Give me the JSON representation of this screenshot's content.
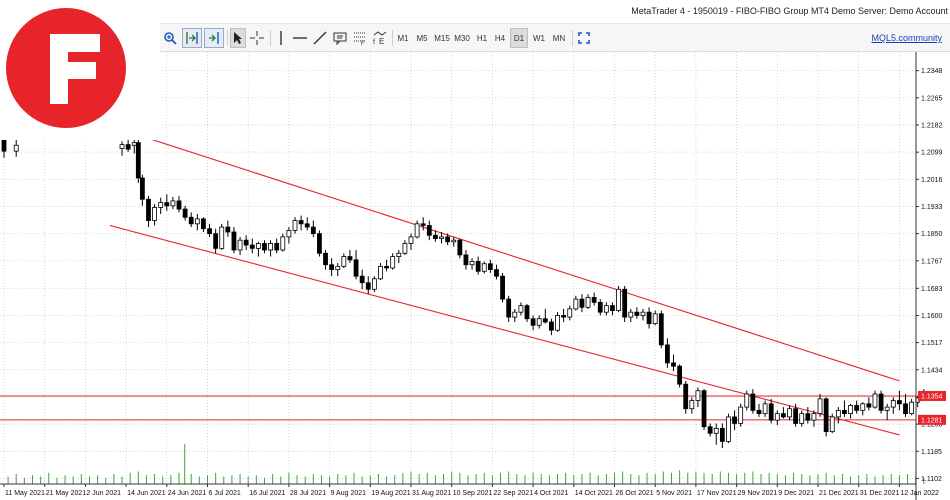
{
  "window": {
    "title": "MetaTrader 4 - 1950019 - FIBO-FIBO Group MT4 Demo Server: Demo Account"
  },
  "toolbar": {
    "timeframes": [
      "M1",
      "M5",
      "M15",
      "M30",
      "H1",
      "H4",
      "D1",
      "W1",
      "MN"
    ],
    "active_timeframe": "D1",
    "community_link": "MQL5.community",
    "icons": [
      "zoom-in-icon",
      "autoscroll-icon",
      "chart-shift-icon",
      "cursor-icon",
      "crosshair-icon",
      "vertical-line-icon",
      "horizontal-line-icon",
      "trendline-icon",
      "text-label-icon",
      "fibonacci-icon",
      "indicators-icon",
      "fullscreen-icon"
    ]
  },
  "logo": {
    "name": "fibo-group-logo",
    "color": "#e8242b"
  },
  "chart_data": {
    "type": "candlestick",
    "symbol_timeframe": "D1",
    "y_axis": {
      "ticks": [
        "1.2348",
        "1.2265",
        "1.2182",
        "1.2099",
        "1.2016",
        "1.1933",
        "1.1850",
        "1.1767",
        "1.1683",
        "1.1600",
        "1.1517",
        "1.1434",
        "1.1351",
        "1.1268",
        "1.1185",
        "1.1102"
      ],
      "range": [
        1.1085,
        1.2405
      ]
    },
    "x_axis": {
      "labels": [
        "11 May 2021",
        "21 May 2021",
        "2 Jun 2021",
        "14 Jun 2021",
        "24 Jun 2021",
        "6 Jul 2021",
        "16 Jul 2021",
        "28 Jul 2021",
        "9 Aug 2021",
        "19 Aug 2021",
        "31 Aug 2021",
        "10 Sep 2021",
        "22 Sep 2021",
        "4 Oct 2021",
        "14 Oct 2021",
        "26 Oct 2021",
        "5 Nov 2021",
        "17 Nov 2021",
        "29 Nov 2021",
        "9 Dec 2021",
        "21 Dec 2021",
        "31 Dec 2021",
        "12 Jan 2022"
      ]
    },
    "price_tags": [
      {
        "label": "1.1354",
        "value": 1.1354,
        "color": "#e8242b"
      },
      {
        "label": "1.1281",
        "value": 1.1281,
        "color": "#e8242b"
      }
    ],
    "horizontal_lines": [
      1.1354,
      1.1281
    ],
    "channel": {
      "upper": [
        [
          3.2,
          1.2155
        ],
        [
          22.0,
          1.14
        ]
      ],
      "lower": [
        [
          2.6,
          1.1875
        ],
        [
          22.0,
          1.1235
        ]
      ],
      "color": "#e8242b"
    },
    "candles": [
      [
        0.0,
        1.214,
        1.2175,
        1.2082,
        1.2102
      ],
      [
        0.3,
        1.2102,
        1.2138,
        1.2085,
        1.212
      ],
      [
        2.9,
        1.211,
        1.2132,
        1.2088,
        1.2122
      ],
      [
        3.05,
        1.2122,
        1.214,
        1.21,
        1.2108
      ],
      [
        3.2,
        1.212,
        1.215,
        1.2095,
        1.2128
      ],
      [
        3.3,
        1.2128,
        1.2145,
        1.2005,
        1.202
      ],
      [
        3.4,
        1.202,
        1.203,
        1.1935,
        1.1955
      ],
      [
        3.55,
        1.1955,
        1.1965,
        1.187,
        1.189
      ],
      [
        3.7,
        1.189,
        1.194,
        1.1875,
        1.193
      ],
      [
        3.85,
        1.193,
        1.196,
        1.191,
        1.1945
      ],
      [
        4.0,
        1.1945,
        1.197,
        1.192,
        1.1935
      ],
      [
        4.15,
        1.1935,
        1.1962,
        1.1925,
        1.195
      ],
      [
        4.3,
        1.195,
        1.1965,
        1.1915,
        1.1925
      ],
      [
        4.45,
        1.1925,
        1.1935,
        1.189,
        1.19
      ],
      [
        4.6,
        1.19,
        1.1915,
        1.187,
        1.188
      ],
      [
        4.75,
        1.188,
        1.191,
        1.186,
        1.1895
      ],
      [
        4.9,
        1.1895,
        1.19,
        1.1855,
        1.1865
      ],
      [
        5.05,
        1.1865,
        1.188,
        1.184,
        1.185
      ],
      [
        5.2,
        1.185,
        1.1865,
        1.179,
        1.1805
      ],
      [
        5.35,
        1.1805,
        1.188,
        1.18,
        1.187
      ],
      [
        5.5,
        1.187,
        1.189,
        1.184,
        1.1855
      ],
      [
        5.65,
        1.1855,
        1.187,
        1.179,
        1.18
      ],
      [
        5.8,
        1.18,
        1.184,
        1.1785,
        1.183
      ],
      [
        5.95,
        1.183,
        1.1845,
        1.18,
        1.1815
      ],
      [
        6.1,
        1.1815,
        1.1835,
        1.179,
        1.1805
      ],
      [
        6.25,
        1.1805,
        1.1825,
        1.178,
        1.182
      ],
      [
        6.4,
        1.182,
        1.183,
        1.179,
        1.18
      ],
      [
        6.55,
        1.18,
        1.183,
        1.178,
        1.182
      ],
      [
        6.7,
        1.182,
        1.1835,
        1.179,
        1.18
      ],
      [
        6.85,
        1.18,
        1.185,
        1.1795,
        1.184
      ],
      [
        7.0,
        1.184,
        1.187,
        1.182,
        1.186
      ],
      [
        7.15,
        1.186,
        1.19,
        1.185,
        1.189
      ],
      [
        7.3,
        1.189,
        1.1905,
        1.186,
        1.188
      ],
      [
        7.45,
        1.188,
        1.19,
        1.186,
        1.187
      ],
      [
        7.6,
        1.187,
        1.189,
        1.184,
        1.185
      ],
      [
        7.75,
        1.185,
        1.186,
        1.178,
        1.179
      ],
      [
        7.9,
        1.179,
        1.18,
        1.174,
        1.1755
      ],
      [
        8.05,
        1.1755,
        1.1775,
        1.172,
        1.174
      ],
      [
        8.2,
        1.174,
        1.176,
        1.172,
        1.175
      ],
      [
        8.35,
        1.175,
        1.179,
        1.1745,
        1.178
      ],
      [
        8.5,
        1.178,
        1.18,
        1.176,
        1.177
      ],
      [
        8.65,
        1.177,
        1.18,
        1.171,
        1.172
      ],
      [
        8.8,
        1.172,
        1.174,
        1.168,
        1.17
      ],
      [
        8.95,
        1.17,
        1.172,
        1.1665,
        1.168
      ],
      [
        9.1,
        1.168,
        1.172,
        1.1672,
        1.1712
      ],
      [
        9.25,
        1.1712,
        1.176,
        1.1708,
        1.175
      ],
      [
        9.4,
        1.175,
        1.177,
        1.1735,
        1.1745
      ],
      [
        9.55,
        1.1745,
        1.179,
        1.174,
        1.178
      ],
      [
        9.7,
        1.178,
        1.18,
        1.176,
        1.179
      ],
      [
        9.85,
        1.179,
        1.183,
        1.1785,
        1.182
      ],
      [
        10.0,
        1.182,
        1.185,
        1.18,
        1.184
      ],
      [
        10.15,
        1.184,
        1.189,
        1.1835,
        1.188
      ],
      [
        10.3,
        1.188,
        1.19,
        1.186,
        1.1875
      ],
      [
        10.45,
        1.1875,
        1.189,
        1.183,
        1.1845
      ],
      [
        10.6,
        1.1845,
        1.186,
        1.1825,
        1.1835
      ],
      [
        10.75,
        1.1835,
        1.1855,
        1.182,
        1.184
      ],
      [
        10.9,
        1.184,
        1.185,
        1.1815,
        1.1825
      ],
      [
        11.05,
        1.1825,
        1.184,
        1.181,
        1.183
      ],
      [
        11.2,
        1.183,
        1.1835,
        1.1775,
        1.1785
      ],
      [
        11.35,
        1.1785,
        1.18,
        1.174,
        1.1755
      ],
      [
        11.5,
        1.1755,
        1.1775,
        1.174,
        1.1765
      ],
      [
        11.65,
        1.1765,
        1.178,
        1.1725,
        1.1735
      ],
      [
        11.8,
        1.1735,
        1.1765,
        1.1728,
        1.1758
      ],
      [
        11.95,
        1.1758,
        1.177,
        1.173,
        1.174
      ],
      [
        12.1,
        1.174,
        1.1755,
        1.171,
        1.172
      ],
      [
        12.25,
        1.172,
        1.173,
        1.164,
        1.165
      ],
      [
        12.4,
        1.165,
        1.166,
        1.158,
        1.1595
      ],
      [
        12.55,
        1.1595,
        1.162,
        1.158,
        1.161
      ],
      [
        12.7,
        1.161,
        1.164,
        1.16,
        1.163
      ],
      [
        12.85,
        1.163,
        1.1635,
        1.158,
        1.159
      ],
      [
        13.0,
        1.159,
        1.16,
        1.1555,
        1.157
      ],
      [
        13.15,
        1.157,
        1.16,
        1.156,
        1.159
      ],
      [
        13.3,
        1.159,
        1.162,
        1.1575,
        1.158
      ],
      [
        13.45,
        1.158,
        1.159,
        1.154,
        1.1555
      ],
      [
        13.6,
        1.1555,
        1.161,
        1.155,
        1.16
      ],
      [
        13.75,
        1.16,
        1.162,
        1.158,
        1.1595
      ],
      [
        13.9,
        1.1595,
        1.163,
        1.1585,
        1.162
      ],
      [
        14.05,
        1.162,
        1.166,
        1.1615,
        1.165
      ],
      [
        14.2,
        1.165,
        1.1665,
        1.161,
        1.1625
      ],
      [
        14.35,
        1.1625,
        1.1665,
        1.162,
        1.1655
      ],
      [
        14.5,
        1.1655,
        1.167,
        1.163,
        1.164
      ],
      [
        14.65,
        1.164,
        1.165,
        1.16,
        1.161
      ],
      [
        14.8,
        1.161,
        1.164,
        1.16,
        1.163
      ],
      [
        14.95,
        1.163,
        1.164,
        1.16,
        1.1615
      ],
      [
        15.1,
        1.1615,
        1.169,
        1.161,
        1.168
      ],
      [
        15.25,
        1.168,
        1.169,
        1.158,
        1.1595
      ],
      [
        15.4,
        1.1595,
        1.162,
        1.158,
        1.161
      ],
      [
        15.55,
        1.161,
        1.1625,
        1.159,
        1.16
      ],
      [
        15.7,
        1.16,
        1.162,
        1.1585,
        1.161
      ],
      [
        15.85,
        1.161,
        1.1625,
        1.156,
        1.1575
      ],
      [
        16.0,
        1.1575,
        1.1615,
        1.157,
        1.1605
      ],
      [
        16.15,
        1.1605,
        1.1615,
        1.15,
        1.151
      ],
      [
        16.3,
        1.151,
        1.153,
        1.144,
        1.1455
      ],
      [
        16.45,
        1.1455,
        1.148,
        1.143,
        1.1445
      ],
      [
        16.6,
        1.1445,
        1.145,
        1.138,
        1.139
      ],
      [
        16.75,
        1.139,
        1.14,
        1.13,
        1.1315
      ],
      [
        16.9,
        1.1315,
        1.135,
        1.13,
        1.134
      ],
      [
        17.05,
        1.134,
        1.138,
        1.132,
        1.137
      ],
      [
        17.2,
        1.137,
        1.1375,
        1.125,
        1.126
      ],
      [
        17.35,
        1.126,
        1.127,
        1.123,
        1.124
      ],
      [
        17.5,
        1.124,
        1.127,
        1.1205,
        1.1255
      ],
      [
        17.65,
        1.1255,
        1.127,
        1.1195,
        1.1215
      ],
      [
        17.8,
        1.1215,
        1.13,
        1.121,
        1.129
      ],
      [
        17.95,
        1.129,
        1.131,
        1.125,
        1.127
      ],
      [
        18.1,
        1.127,
        1.133,
        1.126,
        1.132
      ],
      [
        18.25,
        1.132,
        1.137,
        1.131,
        1.136
      ],
      [
        18.4,
        1.136,
        1.1375,
        1.13,
        1.131
      ],
      [
        18.55,
        1.131,
        1.133,
        1.129,
        1.13
      ],
      [
        18.7,
        1.13,
        1.134,
        1.129,
        1.133
      ],
      [
        18.85,
        1.133,
        1.1345,
        1.127,
        1.128
      ],
      [
        19.0,
        1.128,
        1.131,
        1.1265,
        1.13
      ],
      [
        19.15,
        1.13,
        1.132,
        1.1285,
        1.129
      ],
      [
        19.3,
        1.129,
        1.1325,
        1.128,
        1.1315
      ],
      [
        19.45,
        1.1315,
        1.133,
        1.126,
        1.127
      ],
      [
        19.6,
        1.127,
        1.131,
        1.126,
        1.13
      ],
      [
        19.75,
        1.13,
        1.132,
        1.127,
        1.128
      ],
      [
        19.9,
        1.128,
        1.131,
        1.126,
        1.13
      ],
      [
        20.05,
        1.13,
        1.136,
        1.129,
        1.1345
      ],
      [
        20.2,
        1.1345,
        1.135,
        1.123,
        1.1245
      ],
      [
        20.35,
        1.1245,
        1.13,
        1.124,
        1.129
      ],
      [
        20.5,
        1.129,
        1.132,
        1.127,
        1.131
      ],
      [
        20.65,
        1.131,
        1.134,
        1.129,
        1.13
      ],
      [
        20.8,
        1.13,
        1.133,
        1.1285,
        1.1325
      ],
      [
        20.95,
        1.1325,
        1.134,
        1.13,
        1.131
      ],
      [
        21.1,
        1.131,
        1.1335,
        1.1295,
        1.133
      ],
      [
        21.25,
        1.133,
        1.135,
        1.131,
        1.132
      ],
      [
        21.4,
        1.132,
        1.137,
        1.1315,
        1.136
      ],
      [
        21.55,
        1.136,
        1.137,
        1.13,
        1.131
      ],
      [
        21.7,
        1.131,
        1.133,
        1.128,
        1.132
      ],
      [
        21.85,
        1.132,
        1.135,
        1.13,
        1.134
      ],
      [
        22.0,
        1.134,
        1.137,
        1.131,
        1.133
      ],
      [
        22.15,
        1.133,
        1.136,
        1.129,
        1.13
      ],
      [
        22.3,
        1.13,
        1.1345,
        1.1295,
        1.1335
      ],
      [
        22.45,
        1.1335,
        1.1355,
        1.132,
        1.1348
      ],
      [
        22.6,
        1.1348,
        1.1375,
        1.134,
        1.1354
      ]
    ],
    "volumes": [
      [
        0.1,
        6
      ],
      [
        0.3,
        8
      ],
      [
        0.5,
        5
      ],
      [
        0.7,
        7
      ],
      [
        0.9,
        6
      ],
      [
        1.1,
        9
      ],
      [
        1.3,
        5
      ],
      [
        1.5,
        7
      ],
      [
        1.7,
        6
      ],
      [
        1.9,
        8
      ],
      [
        2.1,
        6
      ],
      [
        2.3,
        7
      ],
      [
        2.5,
        5
      ],
      [
        2.7,
        8
      ],
      [
        2.9,
        6
      ],
      [
        3.1,
        9
      ],
      [
        3.3,
        10
      ],
      [
        3.5,
        7
      ],
      [
        3.7,
        8
      ],
      [
        3.9,
        6
      ],
      [
        4.1,
        7
      ],
      [
        4.3,
        9
      ],
      [
        4.44,
        32
      ],
      [
        4.6,
        8
      ],
      [
        4.8,
        6
      ],
      [
        5.0,
        7
      ],
      [
        5.2,
        9
      ],
      [
        5.4,
        6
      ],
      [
        5.6,
        7
      ],
      [
        5.8,
        8
      ],
      [
        6.0,
        6
      ],
      [
        6.2,
        7
      ],
      [
        6.4,
        5
      ],
      [
        6.6,
        8
      ],
      [
        6.8,
        6
      ],
      [
        7.0,
        9
      ],
      [
        7.2,
        7
      ],
      [
        7.4,
        6
      ],
      [
        7.6,
        8
      ],
      [
        7.8,
        7
      ],
      [
        8.0,
        6
      ],
      [
        8.2,
        8
      ],
      [
        8.4,
        7
      ],
      [
        8.6,
        9
      ],
      [
        8.8,
        6
      ],
      [
        9.0,
        7
      ],
      [
        9.2,
        8
      ],
      [
        9.4,
        6
      ],
      [
        9.6,
        7
      ],
      [
        9.8,
        9
      ],
      [
        10.0,
        10
      ],
      [
        10.2,
        8
      ],
      [
        10.4,
        9
      ],
      [
        10.6,
        7
      ],
      [
        10.8,
        8
      ],
      [
        11.0,
        10
      ],
      [
        11.2,
        9
      ],
      [
        11.4,
        7
      ],
      [
        11.6,
        8
      ],
      [
        11.8,
        9
      ],
      [
        12.0,
        7
      ],
      [
        12.2,
        9
      ],
      [
        12.4,
        10
      ],
      [
        12.6,
        8
      ],
      [
        12.8,
        7
      ],
      [
        13.0,
        9
      ],
      [
        13.2,
        8
      ],
      [
        13.4,
        7
      ],
      [
        13.6,
        8
      ],
      [
        13.8,
        9
      ],
      [
        14.0,
        7
      ],
      [
        14.2,
        8
      ],
      [
        14.4,
        9
      ],
      [
        14.6,
        7
      ],
      [
        14.8,
        8
      ],
      [
        15.0,
        9
      ],
      [
        15.2,
        10
      ],
      [
        15.4,
        8
      ],
      [
        15.6,
        7
      ],
      [
        15.8,
        9
      ],
      [
        16.0,
        8
      ],
      [
        16.2,
        10
      ],
      [
        16.4,
        9
      ],
      [
        16.6,
        11
      ],
      [
        16.8,
        9
      ],
      [
        17.0,
        10
      ],
      [
        17.2,
        9
      ],
      [
        17.4,
        8
      ],
      [
        17.6,
        10
      ],
      [
        17.8,
        9
      ],
      [
        18.0,
        8
      ],
      [
        18.2,
        9
      ],
      [
        18.4,
        10
      ],
      [
        18.6,
        8
      ],
      [
        18.8,
        9
      ],
      [
        19.0,
        8
      ],
      [
        19.2,
        7
      ],
      [
        19.4,
        9
      ],
      [
        19.6,
        8
      ],
      [
        19.8,
        7
      ],
      [
        20.0,
        8
      ],
      [
        20.2,
        9
      ],
      [
        20.4,
        7
      ],
      [
        20.6,
        8
      ],
      [
        20.8,
        6
      ],
      [
        21.0,
        7
      ],
      [
        21.2,
        8
      ],
      [
        21.4,
        6
      ],
      [
        21.6,
        7
      ],
      [
        21.8,
        8
      ],
      [
        22.0,
        7
      ],
      [
        22.2,
        8
      ],
      [
        22.4,
        6
      ],
      [
        22.6,
        5
      ]
    ],
    "colors": {
      "background": "#ffffff",
      "grid": "#c8c8c8",
      "candle": "#000000",
      "volume": "#3fa33f",
      "channel": "#e8242b",
      "level": "#e8242b",
      "logo": "#e8242b"
    }
  }
}
